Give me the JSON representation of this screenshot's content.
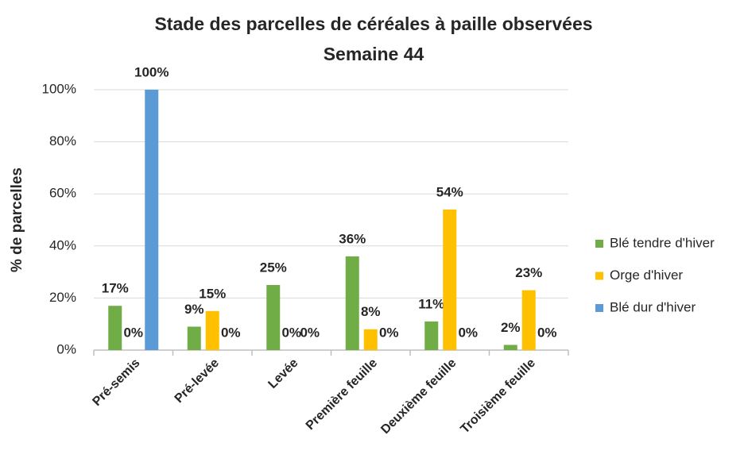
{
  "chart_data": {
    "type": "bar",
    "title": "Stade des parcelles de céréales à paille observées",
    "subtitle": "Semaine 44",
    "y_label": "% de parcelles",
    "categories": [
      "Pré-semis",
      "Pré-levée",
      "Levée",
      "Première feuille",
      "Deuxième feuille",
      "Troisième feuille"
    ],
    "series": [
      {
        "name": "Blé tendre d'hiver",
        "color": "#70ad47",
        "values": [
          17,
          9,
          25,
          36,
          11,
          2
        ],
        "value_labels": [
          "17%",
          "9%",
          "25%",
          "36%",
          "11%",
          "2%"
        ]
      },
      {
        "name": "Orge d'hiver",
        "color": "#ffc000",
        "values": [
          0,
          15,
          0,
          8,
          54,
          23
        ],
        "value_labels": [
          "0%",
          "15%",
          "0%",
          "8%",
          "54%",
          "23%"
        ]
      },
      {
        "name": "Blé dur d'hiver",
        "color": "#5b9bd5",
        "values": [
          100,
          0,
          0,
          0,
          0,
          0
        ],
        "value_labels": [
          "100%",
          "0%",
          "0%",
          "0%",
          "0%",
          "0%"
        ]
      }
    ],
    "ylim": [
      0,
      100
    ],
    "yticks": [
      {
        "value": 0,
        "label": "0%"
      },
      {
        "value": 20,
        "label": "20%"
      },
      {
        "value": 40,
        "label": "40%"
      },
      {
        "value": 60,
        "label": "60%"
      },
      {
        "value": 80,
        "label": "80%"
      },
      {
        "value": 100,
        "label": "100%"
      }
    ],
    "grid": true,
    "legend": "right"
  }
}
